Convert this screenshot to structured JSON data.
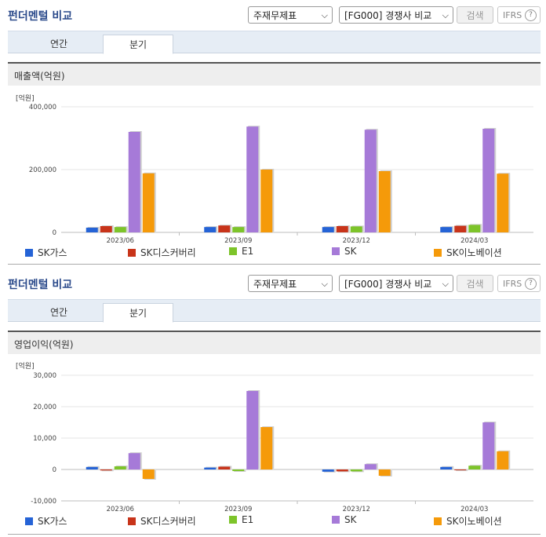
{
  "header": {
    "title": "펀더멘털 비교",
    "statement_select": "주재무제표",
    "compare_select": "[FG000] 경쟁사 비교",
    "search_label": "검색",
    "ifrs_label": "IFRS",
    "help_glyph": "?"
  },
  "tabs": [
    "연간",
    "분기"
  ],
  "active_tab": "분기",
  "unit_label": "[억원]",
  "colors": {
    "SK가스": "#2563d6",
    "SK디스커버리": "#c8341a",
    "E1": "#7dc42a",
    "SK": "#a67ad8",
    "SK이노베이션": "#f59a0a"
  },
  "chart_data": [
    {
      "type": "bar",
      "title": "매출액(억원)",
      "categories": [
        "2023/06",
        "2023/09",
        "2023/12",
        "2024/03"
      ],
      "ylim": [
        0,
        400000
      ],
      "yticks": [
        0,
        200000,
        400000
      ],
      "ytick_labels": [
        "0",
        "200,000",
        "400,000"
      ],
      "grid": true,
      "legend": "bottom",
      "series": [
        {
          "name": "SK가스",
          "values": [
            15000,
            17000,
            17000,
            17000
          ]
        },
        {
          "name": "SK디스커버리",
          "values": [
            20000,
            22000,
            20000,
            21000
          ]
        },
        {
          "name": "E1",
          "values": [
            17000,
            17000,
            19000,
            24000
          ]
        },
        {
          "name": "SK",
          "values": [
            320000,
            337000,
            327000,
            330000
          ]
        },
        {
          "name": "SK이노베이션",
          "values": [
            188000,
            200000,
            195000,
            187000
          ]
        }
      ]
    },
    {
      "type": "bar",
      "title": "영업이익(억원)",
      "categories": [
        "2023/06",
        "2023/09",
        "2023/12",
        "2024/03"
      ],
      "ylim": [
        -10000,
        30000
      ],
      "yticks": [
        -10000,
        0,
        10000,
        20000,
        30000
      ],
      "ytick_labels": [
        "-10,000",
        "0",
        "10,000",
        "20,000",
        "30,000"
      ],
      "grid": true,
      "legend": "bottom",
      "series": [
        {
          "name": "SK가스",
          "values": [
            800,
            600,
            -700,
            800
          ]
        },
        {
          "name": "SK디스커버리",
          "values": [
            -300,
            900,
            -600,
            -200
          ]
        },
        {
          "name": "E1",
          "values": [
            1000,
            -500,
            -600,
            1200
          ]
        },
        {
          "name": "SK",
          "values": [
            5200,
            25000,
            1700,
            15000
          ]
        },
        {
          "name": "SK이노베이션",
          "values": [
            -3000,
            13500,
            -2000,
            5800
          ]
        }
      ]
    }
  ]
}
